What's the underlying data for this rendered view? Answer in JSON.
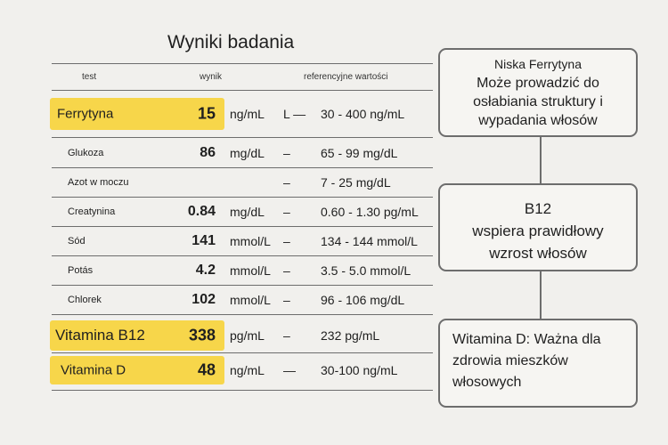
{
  "title": "Wyniki badania",
  "headers": {
    "test": "test",
    "result": "wynik",
    "ref": "referencyjne wartości"
  },
  "rows": [
    {
      "name": "Ferrytyna",
      "value": "15",
      "unit": "ng/mL",
      "flag": "L —",
      "ref": "30 - 400 ng/mL"
    },
    {
      "name": "Glukoza",
      "value": "86",
      "unit": "mg/dL",
      "flag": "–",
      "ref": "65 - 99 mg/dL"
    },
    {
      "name": "Azot w moczu",
      "value": "",
      "unit": "",
      "flag": "–",
      "ref": "7 - 25 mg/dL"
    },
    {
      "name": "Creatynina",
      "value": "0.84",
      "unit": "mg/dL",
      "flag": "–",
      "ref": "0.60 - 1.30 pg/mL"
    },
    {
      "name": "Sód",
      "value": "141",
      "unit": "mmol/L",
      "flag": "–",
      "ref": "134 - 144 mmol/L"
    },
    {
      "name": "Potás",
      "value": "4.2",
      "unit": "mmol/L",
      "flag": "–",
      "ref": "3.5 - 5.0 mmol/L"
    },
    {
      "name": "Chlorek",
      "value": "102",
      "unit": "mmol/L",
      "flag": "–",
      "ref": "96 - 106 mg/dL"
    },
    {
      "name": "Vitamina B12",
      "value": "338",
      "unit": "pg/mL",
      "flag": "–",
      "ref": "232 pg/mL"
    },
    {
      "name": "Vitamina D",
      "value": "48",
      "unit": "ng/mL",
      "flag": "—",
      "ref": "30-100 ng/mL"
    }
  ],
  "notes": {
    "ferritin": {
      "line1": "Niska Ferrytyna",
      "line2": "Może prowadzić do",
      "line3": "osłabiania struktury i",
      "line4": "wypadania włosów"
    },
    "b12": {
      "line1": "B12",
      "line2": "wspiera prawidłowy",
      "line3": "wzrost włosów"
    },
    "vitd": {
      "line1": "Witamina D: Ważna dla",
      "line2": "zdrowia mieszków",
      "line3": "włosowych"
    }
  },
  "colors": {
    "highlight": "#f7d64a",
    "border": "#6d6d6d",
    "background": "#f1f0ed"
  }
}
